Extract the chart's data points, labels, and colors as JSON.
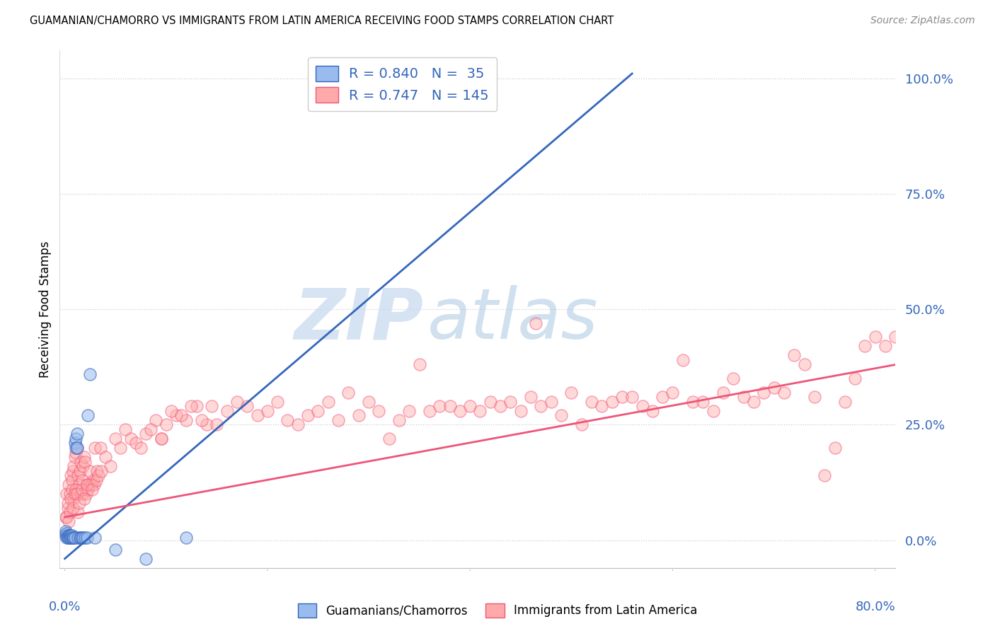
{
  "title": "GUAMANIAN/CHAMORRO VS IMMIGRANTS FROM LATIN AMERICA RECEIVING FOOD STAMPS CORRELATION CHART",
  "source": "Source: ZipAtlas.com",
  "ylabel": "Receiving Food Stamps",
  "ytick_labels": [
    "0.0%",
    "25.0%",
    "50.0%",
    "75.0%",
    "100.0%"
  ],
  "ytick_values": [
    0.0,
    0.25,
    0.5,
    0.75,
    1.0
  ],
  "xlim": [
    -0.005,
    0.82
  ],
  "ylim": [
    -0.06,
    1.06
  ],
  "blue_color": "#99bbee",
  "pink_color": "#ffaaaa",
  "blue_line_color": "#3366bb",
  "pink_line_color": "#ee5577",
  "blue_R": 0.84,
  "blue_N": 35,
  "pink_R": 0.747,
  "pink_N": 145,
  "legend_label_blue": "Guamanians/Chamorros",
  "legend_label_pink": "Immigrants from Latin America",
  "watermark_zip": "ZIP",
  "watermark_atlas": "atlas",
  "background_color": "#ffffff",
  "blue_scatter_x": [
    0.001,
    0.001,
    0.002,
    0.002,
    0.003,
    0.003,
    0.004,
    0.004,
    0.005,
    0.005,
    0.006,
    0.006,
    0.007,
    0.007,
    0.008,
    0.009,
    0.01,
    0.01,
    0.011,
    0.011,
    0.012,
    0.012,
    0.013,
    0.015,
    0.016,
    0.017,
    0.018,
    0.02,
    0.022,
    0.023,
    0.025,
    0.03,
    0.05,
    0.08,
    0.12
  ],
  "blue_scatter_y": [
    0.02,
    0.01,
    0.015,
    0.005,
    0.01,
    0.005,
    0.01,
    0.005,
    0.01,
    0.005,
    0.01,
    0.005,
    0.01,
    0.005,
    0.005,
    0.005,
    0.005,
    0.21,
    0.22,
    0.2,
    0.23,
    0.2,
    0.005,
    0.005,
    0.005,
    0.005,
    0.005,
    0.005,
    0.005,
    0.27,
    0.36,
    0.005,
    -0.02,
    -0.04,
    0.005
  ],
  "pink_scatter_x": [
    0.001,
    0.002,
    0.003,
    0.004,
    0.005,
    0.006,
    0.007,
    0.008,
    0.009,
    0.01,
    0.011,
    0.012,
    0.013,
    0.014,
    0.015,
    0.016,
    0.017,
    0.018,
    0.019,
    0.02,
    0.022,
    0.024,
    0.025,
    0.028,
    0.03,
    0.035,
    0.04,
    0.045,
    0.05,
    0.055,
    0.06,
    0.065,
    0.07,
    0.075,
    0.08,
    0.09,
    0.095,
    0.1,
    0.11,
    0.12,
    0.13,
    0.14,
    0.15,
    0.16,
    0.17,
    0.18,
    0.19,
    0.2,
    0.21,
    0.22,
    0.23,
    0.24,
    0.25,
    0.26,
    0.27,
    0.28,
    0.29,
    0.3,
    0.31,
    0.32,
    0.33,
    0.34,
    0.35,
    0.36,
    0.37,
    0.38,
    0.39,
    0.4,
    0.41,
    0.42,
    0.43,
    0.44,
    0.45,
    0.46,
    0.465,
    0.47,
    0.48,
    0.49,
    0.5,
    0.51,
    0.52,
    0.53,
    0.54,
    0.55,
    0.56,
    0.57,
    0.58,
    0.59,
    0.6,
    0.61,
    0.62,
    0.63,
    0.64,
    0.65,
    0.66,
    0.67,
    0.68,
    0.69,
    0.7,
    0.71,
    0.72,
    0.73,
    0.74,
    0.75,
    0.76,
    0.77,
    0.78,
    0.79,
    0.8,
    0.81,
    0.82,
    0.002,
    0.003,
    0.005,
    0.007,
    0.009,
    0.011,
    0.013,
    0.016,
    0.018,
    0.021,
    0.023,
    0.026,
    0.029,
    0.032,
    0.004,
    0.006,
    0.008,
    0.01,
    0.012,
    0.014,
    0.017,
    0.019,
    0.022,
    0.027,
    0.031,
    0.033,
    0.036,
    0.085,
    0.095,
    0.105,
    0.115,
    0.125,
    0.135,
    0.145
  ],
  "pink_scatter_y": [
    0.05,
    0.1,
    0.07,
    0.12,
    0.1,
    0.14,
    0.13,
    0.15,
    0.16,
    0.18,
    0.19,
    0.2,
    0.14,
    0.12,
    0.15,
    0.17,
    0.13,
    0.16,
    0.18,
    0.17,
    0.12,
    0.12,
    0.15,
    0.13,
    0.2,
    0.2,
    0.18,
    0.16,
    0.22,
    0.2,
    0.24,
    0.22,
    0.21,
    0.2,
    0.23,
    0.26,
    0.22,
    0.25,
    0.27,
    0.26,
    0.29,
    0.25,
    0.25,
    0.28,
    0.3,
    0.29,
    0.27,
    0.28,
    0.3,
    0.26,
    0.25,
    0.27,
    0.28,
    0.3,
    0.26,
    0.32,
    0.27,
    0.3,
    0.28,
    0.22,
    0.26,
    0.28,
    0.38,
    0.28,
    0.29,
    0.29,
    0.28,
    0.29,
    0.28,
    0.3,
    0.29,
    0.3,
    0.28,
    0.31,
    0.47,
    0.29,
    0.3,
    0.27,
    0.32,
    0.25,
    0.3,
    0.29,
    0.3,
    0.31,
    0.31,
    0.29,
    0.28,
    0.31,
    0.32,
    0.39,
    0.3,
    0.3,
    0.28,
    0.32,
    0.35,
    0.31,
    0.3,
    0.32,
    0.33,
    0.32,
    0.4,
    0.38,
    0.31,
    0.14,
    0.2,
    0.3,
    0.35,
    0.42,
    0.44,
    0.42,
    0.44,
    0.05,
    0.08,
    0.06,
    0.11,
    0.09,
    0.11,
    0.06,
    0.1,
    0.1,
    0.1,
    0.11,
    0.12,
    0.12,
    0.15,
    0.04,
    0.09,
    0.07,
    0.1,
    0.1,
    0.08,
    0.11,
    0.09,
    0.12,
    0.11,
    0.13,
    0.14,
    0.15,
    0.24,
    0.22,
    0.28,
    0.27,
    0.29,
    0.26,
    0.29
  ],
  "blue_line_x0": 0.0,
  "blue_line_x1": 0.56,
  "blue_line_y0": -0.04,
  "blue_line_y1": 1.01,
  "pink_line_x0": 0.0,
  "pink_line_x1": 0.82,
  "pink_line_y0": 0.05,
  "pink_line_y1": 0.38,
  "xtick_positions": [
    0.0,
    0.2,
    0.4,
    0.6,
    0.8
  ],
  "xtick_left_label": "0.0%",
  "xtick_right_label": "80.0%"
}
